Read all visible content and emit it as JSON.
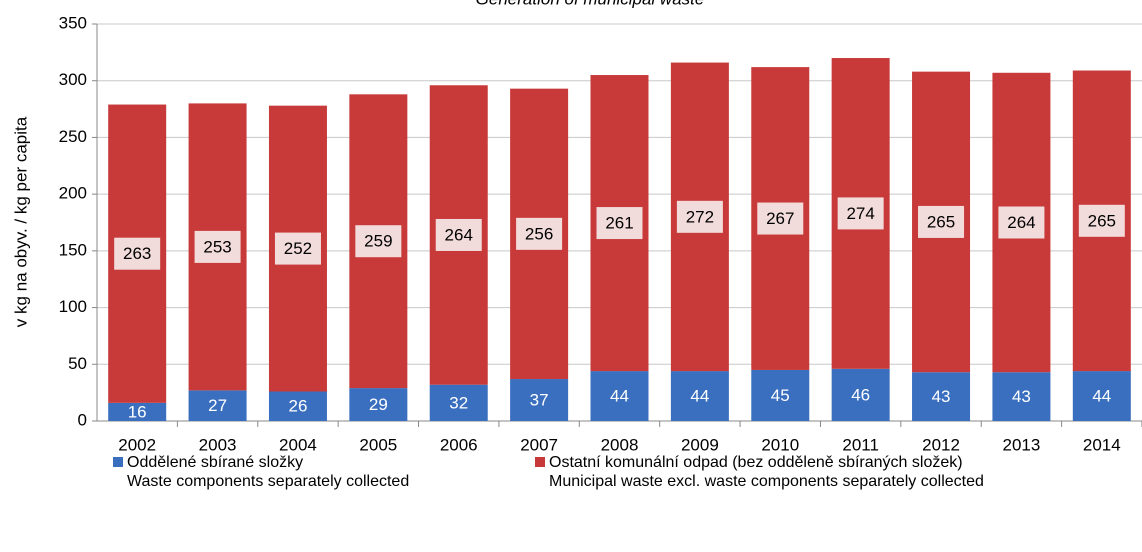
{
  "chart_data": {
    "type": "stacked_bar",
    "title": "Generation of municipal waste",
    "y_label": "v kg na obyv. / kg per capita",
    "categories": [
      "2002",
      "2003",
      "2004",
      "2005",
      "2006",
      "2007",
      "2008",
      "2009",
      "2010",
      "2011",
      "2012",
      "2013",
      "2014"
    ],
    "series": [
      {
        "name": "Oddělené sbírané složky\nWaste components separately collected",
        "color": "#3a6fc0",
        "values": [
          16,
          27,
          26,
          29,
          32,
          37,
          44,
          44,
          45,
          46,
          43,
          43,
          44
        ]
      },
      {
        "name": "Ostatní komunální odpad (bez odděleně sbíraných složek)\nMunicipal waste excl. waste components separately collected",
        "color": "#c83a3a",
        "values": [
          263,
          253,
          252,
          259,
          264,
          256,
          261,
          272,
          267,
          274,
          265,
          264,
          265
        ]
      }
    ],
    "ylim": [
      0,
      350
    ],
    "yticks": [
      0,
      50,
      100,
      150,
      200,
      250,
      300,
      350
    ],
    "grid": true
  }
}
